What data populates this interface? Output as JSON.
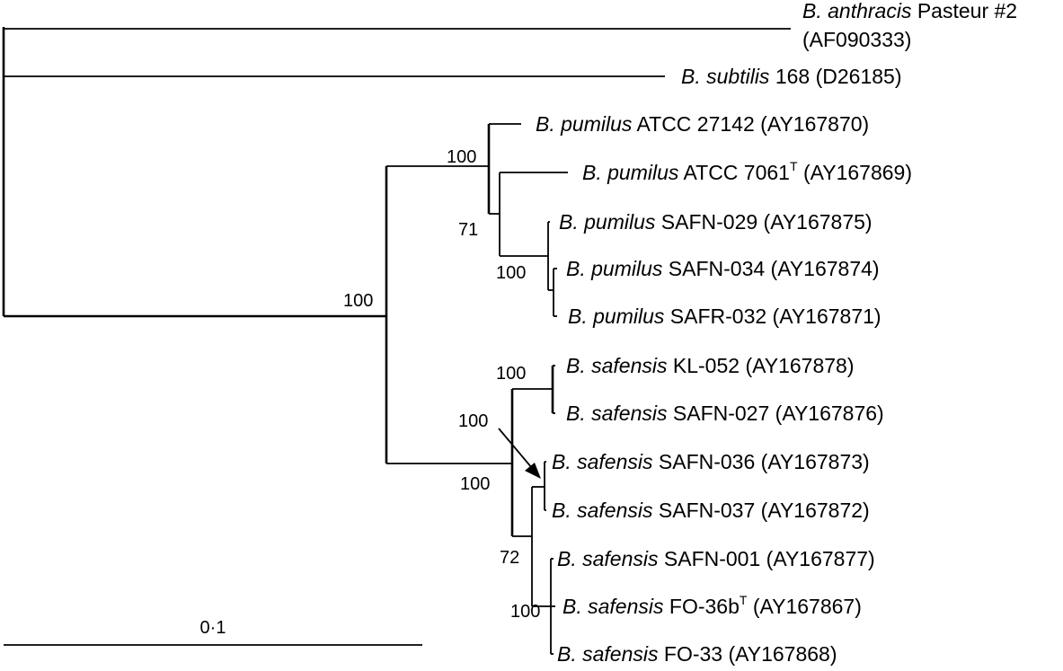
{
  "taxa": [
    {
      "genus": "B.",
      "species": "anthracis",
      "strain": "Pasteur #2",
      "accession": "(AF090333)",
      "type_strain": false
    },
    {
      "genus": "B.",
      "species": "subtilis",
      "strain": "168",
      "accession": "(D26185)",
      "type_strain": false
    },
    {
      "genus": "B.",
      "species": "pumilus",
      "strain": "ATCC 27142",
      "accession": "(AY167870)",
      "type_strain": false
    },
    {
      "genus": "B.",
      "species": "pumilus",
      "strain": "ATCC 7061",
      "accession": "(AY167869)",
      "type_strain": true
    },
    {
      "genus": "B.",
      "species": "pumilus",
      "strain": "SAFN-029",
      "accession": "(AY167875)",
      "type_strain": false
    },
    {
      "genus": "B.",
      "species": "pumilus",
      "strain": "SAFN-034",
      "accession": "(AY167874)",
      "type_strain": false
    },
    {
      "genus": "B.",
      "species": "pumilus",
      "strain": "SAFR-032",
      "accession": "(AY167871)",
      "type_strain": false
    },
    {
      "genus": "B.",
      "species": "safensis",
      "strain": "KL-052",
      "accession": "(AY167878)",
      "type_strain": false
    },
    {
      "genus": "B.",
      "species": "safensis",
      "strain": "SAFN-027",
      "accession": "(AY167876)",
      "type_strain": false
    },
    {
      "genus": "B.",
      "species": "safensis",
      "strain": "SAFN-036",
      "accession": "(AY167873)",
      "type_strain": false
    },
    {
      "genus": "B.",
      "species": "safensis",
      "strain": "SAFN-037",
      "accession": "(AY167872)",
      "type_strain": false
    },
    {
      "genus": "B.",
      "species": "safensis",
      "strain": "SAFN-001",
      "accession": "(AY167877)",
      "type_strain": false
    },
    {
      "genus": "B.",
      "species": "safensis",
      "strain": "FO-36b",
      "accession": "(AY167867)",
      "type_strain": true
    },
    {
      "genus": "B.",
      "species": "safensis",
      "strain": "FO-33",
      "accession": "(AY167868)",
      "type_strain": false
    }
  ],
  "type_strain_marker": "T",
  "bootstrap": [
    "100",
    "71",
    "100",
    "100",
    "100",
    "100",
    "100",
    "72",
    "100"
  ],
  "scale_bar": {
    "label": "0·1",
    "value": 0.1
  }
}
